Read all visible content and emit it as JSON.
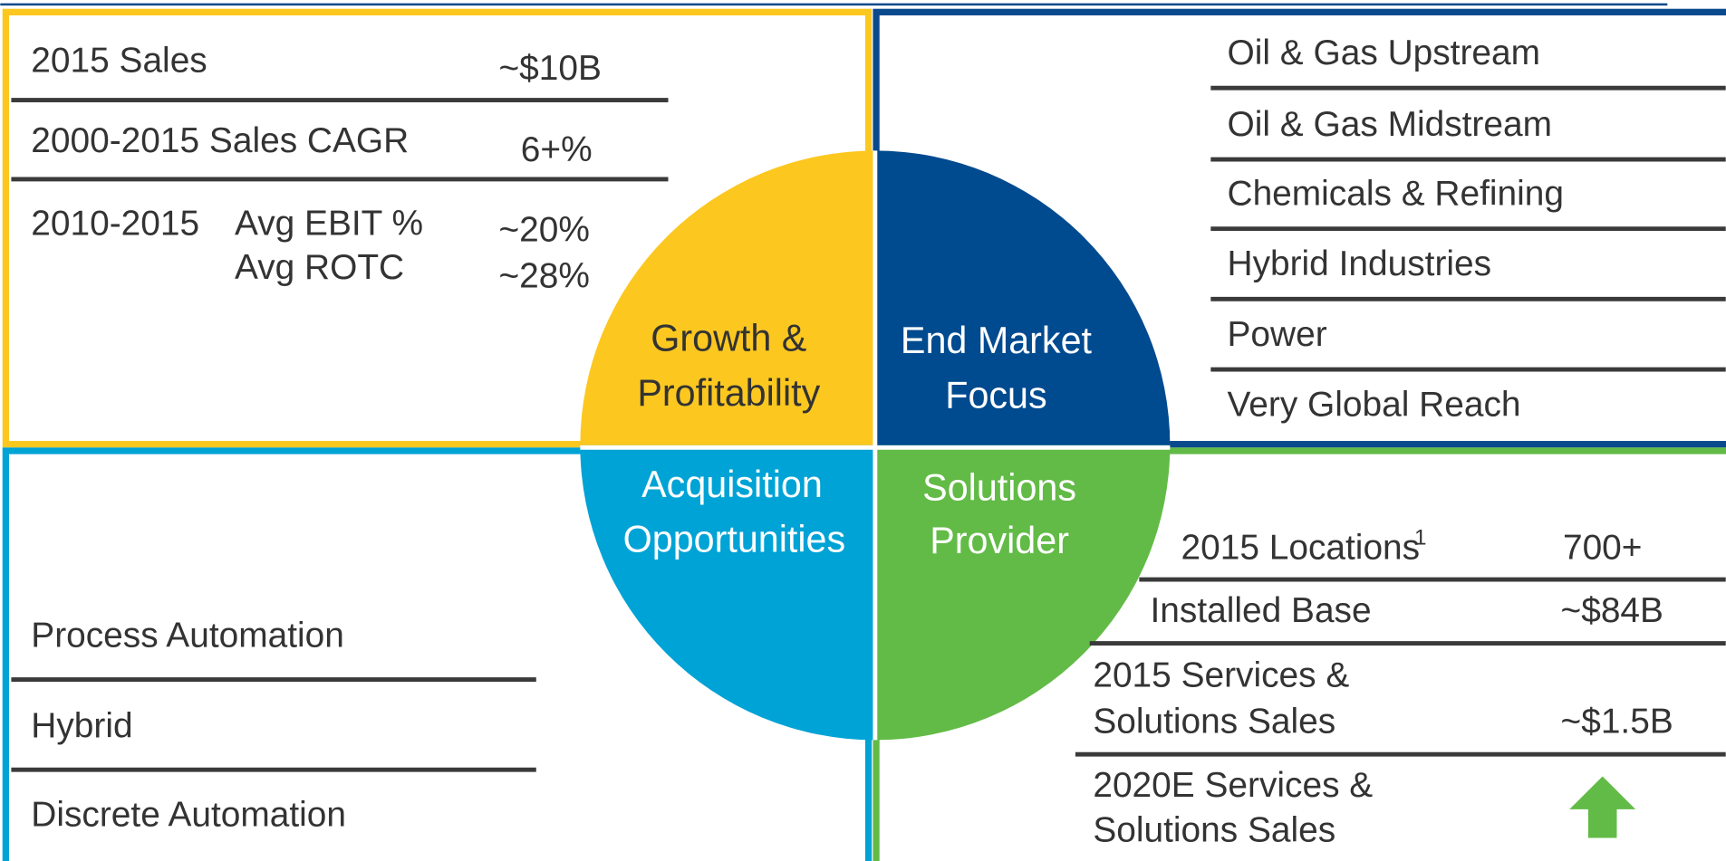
{
  "growth_profitability": {
    "title": [
      "Growth &",
      "Profitability"
    ],
    "rows": [
      {
        "label": "2015 Sales",
        "value": "~$10B"
      },
      {
        "label": "2000-2015 Sales CAGR",
        "value": "6+%"
      },
      {
        "label": "2010-2015",
        "metrics": [
          {
            "name": "Avg EBIT %",
            "value": "~20%"
          },
          {
            "name": "Avg ROTC",
            "value": "~28%"
          }
        ]
      }
    ]
  },
  "end_market_focus": {
    "title": [
      "End Market",
      "Focus"
    ],
    "items": [
      "Oil & Gas Upstream",
      "Oil & Gas Midstream",
      "Chemicals & Refining",
      "Hybrid Industries",
      "Power",
      "Very Global Reach"
    ]
  },
  "acquisition_opportunities": {
    "title": [
      "Acquisition",
      "Opportunities"
    ],
    "items": [
      "Process Automation",
      "Hybrid",
      "Discrete Automation"
    ]
  },
  "solutions_provider": {
    "title": [
      "Solutions",
      "Provider"
    ],
    "rows": [
      {
        "label": [
          "2015 Locations"
        ],
        "footnote": "1",
        "value": "700+"
      },
      {
        "label": [
          "Installed Base"
        ],
        "value": "~$84B"
      },
      {
        "label": [
          "2015 Services &",
          "Solutions Sales"
        ],
        "value": "~$1.5B"
      },
      {
        "label": [
          "2020E Services &",
          "Solutions Sales"
        ]
      }
    ]
  }
}
